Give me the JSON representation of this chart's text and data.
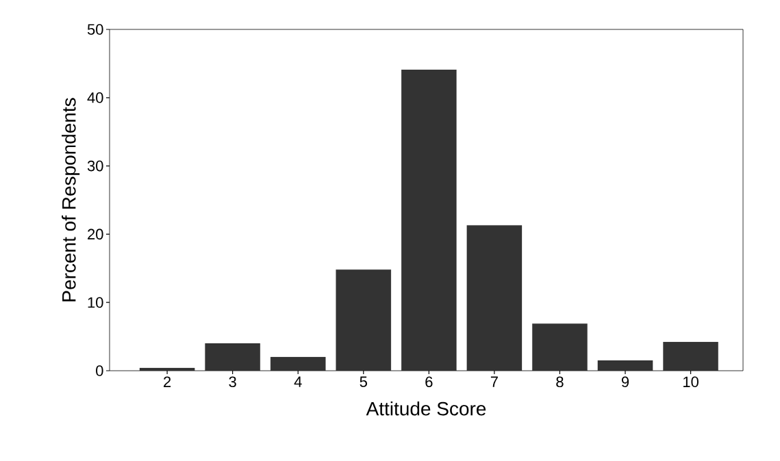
{
  "chart_data": {
    "type": "bar",
    "xlabel": "Attitude Score",
    "ylabel": "Percent of Respondents",
    "categories": [
      "2",
      "3",
      "4",
      "5",
      "6",
      "7",
      "8",
      "9",
      "10"
    ],
    "values": [
      0.4,
      4.0,
      2.0,
      14.8,
      44.1,
      21.3,
      6.9,
      1.5,
      4.2
    ],
    "color": "#333333",
    "ylim": [
      0,
      50
    ],
    "yticks": [
      0,
      10,
      20,
      30,
      40,
      50
    ],
    "grid": false
  }
}
